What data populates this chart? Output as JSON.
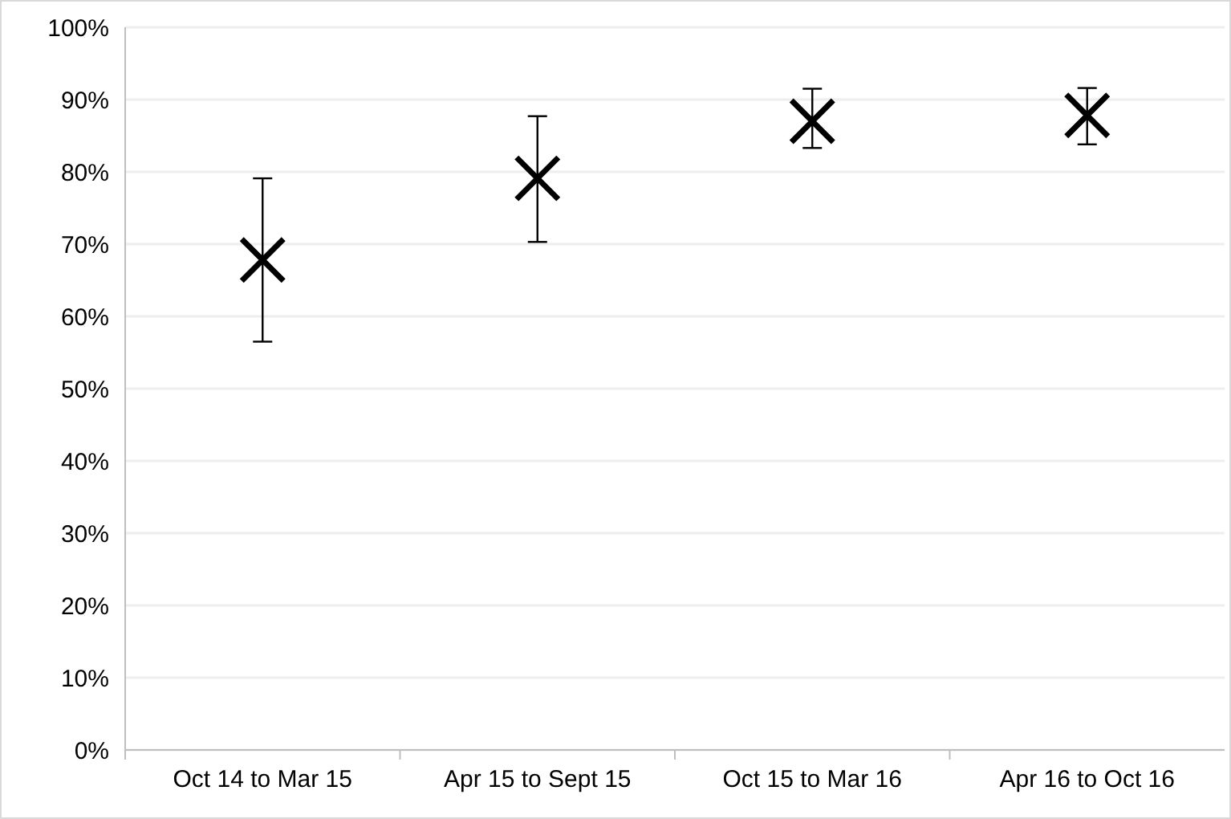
{
  "chart_data": {
    "type": "scatter",
    "categories": [
      "Oct 14 to Mar 15",
      "Apr 15 to Sept 15",
      "Oct 15 to Mar 16",
      "Apr 16 to Oct 16"
    ],
    "series": [
      {
        "color": "#000000",
        "values": [
          67.8,
          79.1,
          87.0,
          87.8
        ],
        "errors": [
          [
            56.5,
            79.1
          ],
          [
            70.3,
            87.7
          ],
          [
            83.3,
            91.5
          ],
          [
            83.8,
            91.6
          ]
        ]
      }
    ],
    "ylim": [
      0,
      100
    ],
    "yticks": [
      {
        "value": 0,
        "label": "0%"
      },
      {
        "value": 10,
        "label": "10%"
      },
      {
        "value": 20,
        "label": "20%"
      },
      {
        "value": 30,
        "label": "30%"
      },
      {
        "value": 40,
        "label": "40%"
      },
      {
        "value": 50,
        "label": "50%"
      },
      {
        "value": 60,
        "label": "60%"
      },
      {
        "value": 70,
        "label": "70%"
      },
      {
        "value": 80,
        "label": "80%"
      },
      {
        "value": 90,
        "label": "90%"
      },
      {
        "value": 100,
        "label": "100%"
      }
    ],
    "grid": "y",
    "marker": "cross"
  }
}
